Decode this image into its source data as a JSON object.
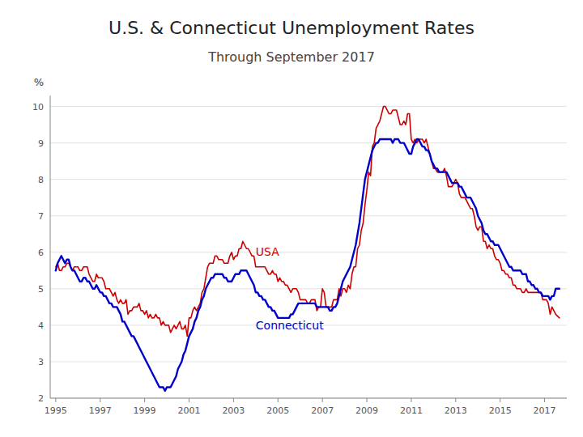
{
  "chart_data": {
    "type": "line",
    "title": "U.S. & Connecticut Unemployment Rates",
    "subtitle": "Through September 2017",
    "y_label": "%",
    "xlim": [
      1994.75,
      2018.0
    ],
    "ylim": [
      2,
      10.3
    ],
    "xticks": [
      1995,
      1997,
      1999,
      2001,
      2003,
      2005,
      2007,
      2009,
      2011,
      2013,
      2015,
      2017
    ],
    "yticks": [
      2,
      3,
      4,
      5,
      6,
      7,
      8,
      9,
      10
    ],
    "grid": true,
    "x": [
      1995.0,
      1995.083,
      1995.167,
      1995.25,
      1995.333,
      1995.417,
      1995.5,
      1995.583,
      1995.667,
      1995.75,
      1995.833,
      1995.917,
      1996.0,
      1996.083,
      1996.167,
      1996.25,
      1996.333,
      1996.417,
      1996.5,
      1996.583,
      1996.667,
      1996.75,
      1996.833,
      1996.917,
      1997.0,
      1997.083,
      1997.167,
      1997.25,
      1997.333,
      1997.417,
      1997.5,
      1997.583,
      1997.667,
      1997.75,
      1997.833,
      1997.917,
      1998.0,
      1998.083,
      1998.167,
      1998.25,
      1998.333,
      1998.417,
      1998.5,
      1998.583,
      1998.667,
      1998.75,
      1998.833,
      1998.917,
      1999.0,
      1999.083,
      1999.167,
      1999.25,
      1999.333,
      1999.417,
      1999.5,
      1999.583,
      1999.667,
      1999.75,
      1999.833,
      1999.917,
      2000.0,
      2000.083,
      2000.167,
      2000.25,
      2000.333,
      2000.417,
      2000.5,
      2000.583,
      2000.667,
      2000.75,
      2000.833,
      2000.917,
      2001.0,
      2001.083,
      2001.167,
      2001.25,
      2001.333,
      2001.417,
      2001.5,
      2001.583,
      2001.667,
      2001.75,
      2001.833,
      2001.917,
      2002.0,
      2002.083,
      2002.167,
      2002.25,
      2002.333,
      2002.417,
      2002.5,
      2002.583,
      2002.667,
      2002.75,
      2002.833,
      2002.917,
      2003.0,
      2003.083,
      2003.167,
      2003.25,
      2003.333,
      2003.417,
      2003.5,
      2003.583,
      2003.667,
      2003.75,
      2003.833,
      2003.917,
      2004.0,
      2004.083,
      2004.167,
      2004.25,
      2004.333,
      2004.417,
      2004.5,
      2004.583,
      2004.667,
      2004.75,
      2004.833,
      2004.917,
      2005.0,
      2005.083,
      2005.167,
      2005.25,
      2005.333,
      2005.417,
      2005.5,
      2005.583,
      2005.667,
      2005.75,
      2005.833,
      2005.917,
      2006.0,
      2006.083,
      2006.167,
      2006.25,
      2006.333,
      2006.417,
      2006.5,
      2006.583,
      2006.667,
      2006.75,
      2006.833,
      2006.917,
      2007.0,
      2007.083,
      2007.167,
      2007.25,
      2007.333,
      2007.417,
      2007.5,
      2007.583,
      2007.667,
      2007.75,
      2007.833,
      2007.917,
      2008.0,
      2008.083,
      2008.167,
      2008.25,
      2008.333,
      2008.417,
      2008.5,
      2008.583,
      2008.667,
      2008.75,
      2008.833,
      2008.917,
      2009.0,
      2009.083,
      2009.167,
      2009.25,
      2009.333,
      2009.417,
      2009.5,
      2009.583,
      2009.667,
      2009.75,
      2009.833,
      2009.917,
      2010.0,
      2010.083,
      2010.167,
      2010.25,
      2010.333,
      2010.417,
      2010.5,
      2010.583,
      2010.667,
      2010.75,
      2010.833,
      2010.917,
      2011.0,
      2011.083,
      2011.167,
      2011.25,
      2011.333,
      2011.417,
      2011.5,
      2011.583,
      2011.667,
      2011.75,
      2011.833,
      2011.917,
      2012.0,
      2012.083,
      2012.167,
      2012.25,
      2012.333,
      2012.417,
      2012.5,
      2012.583,
      2012.667,
      2012.75,
      2012.833,
      2012.917,
      2013.0,
      2013.083,
      2013.167,
      2013.25,
      2013.333,
      2013.417,
      2013.5,
      2013.583,
      2013.667,
      2013.75,
      2013.833,
      2013.917,
      2014.0,
      2014.083,
      2014.167,
      2014.25,
      2014.333,
      2014.417,
      2014.5,
      2014.583,
      2014.667,
      2014.75,
      2014.833,
      2014.917,
      2015.0,
      2015.083,
      2015.167,
      2015.25,
      2015.333,
      2015.417,
      2015.5,
      2015.583,
      2015.667,
      2015.75,
      2015.833,
      2015.917,
      2016.0,
      2016.083,
      2016.167,
      2016.25,
      2016.333,
      2016.417,
      2016.5,
      2016.583,
      2016.667,
      2016.75,
      2016.833,
      2016.917,
      2017.0,
      2017.083,
      2017.167,
      2017.25,
      2017.333,
      2017.417,
      2017.5,
      2017.667
    ],
    "series": [
      {
        "name": "USA",
        "color": "#cc0000",
        "values": [
          5.6,
          5.7,
          5.5,
          5.5,
          5.6,
          5.6,
          5.7,
          5.7,
          5.6,
          5.5,
          5.6,
          5.6,
          5.6,
          5.5,
          5.5,
          5.6,
          5.6,
          5.6,
          5.4,
          5.3,
          5.2,
          5.2,
          5.4,
          5.3,
          5.3,
          5.3,
          5.2,
          5.0,
          5.0,
          5.0,
          4.9,
          4.8,
          4.9,
          4.7,
          4.6,
          4.7,
          4.6,
          4.6,
          4.7,
          4.3,
          4.4,
          4.4,
          4.5,
          4.5,
          4.5,
          4.6,
          4.4,
          4.4,
          4.3,
          4.4,
          4.2,
          4.3,
          4.2,
          4.2,
          4.3,
          4.2,
          4.2,
          4.0,
          4.1,
          4.0,
          4.0,
          4.0,
          3.8,
          3.9,
          4.0,
          3.9,
          4.0,
          4.1,
          3.9,
          3.9,
          4.0,
          3.7,
          4.2,
          4.2,
          4.4,
          4.5,
          4.4,
          4.5,
          4.6,
          4.9,
          5.0,
          5.3,
          5.6,
          5.7,
          5.7,
          5.7,
          5.9,
          5.9,
          5.8,
          5.8,
          5.8,
          5.7,
          5.7,
          5.7,
          5.9,
          6.0,
          5.8,
          5.9,
          5.9,
          6.1,
          6.1,
          6.3,
          6.2,
          6.1,
          6.1,
          6.0,
          5.9,
          5.9,
          5.6,
          5.6,
          5.6,
          5.6,
          5.6,
          5.6,
          5.5,
          5.4,
          5.4,
          5.5,
          5.4,
          5.4,
          5.2,
          5.3,
          5.2,
          5.2,
          5.1,
          5.1,
          5.0,
          4.9,
          5.0,
          5.0,
          5.0,
          4.9,
          4.7,
          4.7,
          4.7,
          4.7,
          4.6,
          4.6,
          4.7,
          4.7,
          4.7,
          4.4,
          4.5,
          4.5,
          5.0,
          4.9,
          4.5,
          4.5,
          4.5,
          4.5,
          4.7,
          4.7,
          4.7,
          5.0,
          4.8,
          5.0,
          5.0,
          4.9,
          5.1,
          5.0,
          5.4,
          5.6,
          5.6,
          6.1,
          6.2,
          6.6,
          6.8,
          7.3,
          7.7,
          8.2,
          8.1,
          8.9,
          9.0,
          9.4,
          9.5,
          9.6,
          9.8,
          10.0,
          10.0,
          9.9,
          9.8,
          9.8,
          9.9,
          9.9,
          9.9,
          9.7,
          9.5,
          9.5,
          9.6,
          9.5,
          9.8,
          9.8,
          9.1,
          9.0,
          9.1,
          9.0,
          9.1,
          9.1,
          9.1,
          9.0,
          9.1,
          8.9,
          8.7,
          8.5,
          8.3,
          8.3,
          8.2,
          8.2,
          8.2,
          8.2,
          8.3,
          8.1,
          7.8,
          7.8,
          7.8,
          7.9,
          8.0,
          7.9,
          7.6,
          7.5,
          7.5,
          7.5,
          7.4,
          7.3,
          7.2,
          7.2,
          7.0,
          6.7,
          6.6,
          6.7,
          6.7,
          6.3,
          6.3,
          6.1,
          6.2,
          6.1,
          6.1,
          5.9,
          5.8,
          5.8,
          5.7,
          5.5,
          5.5,
          5.4,
          5.4,
          5.3,
          5.3,
          5.1,
          5.1,
          5.0,
          5.0,
          5.0,
          4.9,
          4.9,
          5.0,
          4.9,
          4.9,
          4.9,
          4.9,
          4.9,
          4.9,
          4.9,
          4.9,
          4.7,
          4.7,
          4.7,
          4.6,
          4.3,
          4.5,
          4.4,
          4.3,
          4.2
        ]
      },
      {
        "name": "Connecticut",
        "color": "#0000cc",
        "values": [
          5.5,
          5.7,
          5.8,
          5.9,
          5.8,
          5.7,
          5.8,
          5.8,
          5.6,
          5.5,
          5.5,
          5.4,
          5.3,
          5.2,
          5.2,
          5.3,
          5.3,
          5.2,
          5.2,
          5.1,
          5.0,
          5.0,
          5.1,
          5.0,
          4.9,
          4.9,
          4.8,
          4.8,
          4.7,
          4.6,
          4.6,
          4.5,
          4.5,
          4.5,
          4.4,
          4.3,
          4.1,
          4.1,
          4.0,
          3.9,
          3.8,
          3.7,
          3.7,
          3.6,
          3.5,
          3.4,
          3.3,
          3.2,
          3.1,
          3.0,
          2.9,
          2.8,
          2.7,
          2.6,
          2.5,
          2.4,
          2.3,
          2.3,
          2.3,
          2.2,
          2.3,
          2.3,
          2.3,
          2.4,
          2.5,
          2.6,
          2.8,
          2.9,
          3.0,
          3.2,
          3.3,
          3.5,
          3.7,
          3.8,
          3.9,
          4.1,
          4.2,
          4.4,
          4.5,
          4.7,
          4.8,
          5.0,
          5.1,
          5.2,
          5.3,
          5.3,
          5.4,
          5.4,
          5.4,
          5.4,
          5.4,
          5.3,
          5.3,
          5.2,
          5.2,
          5.2,
          5.3,
          5.4,
          5.4,
          5.4,
          5.5,
          5.5,
          5.5,
          5.5,
          5.4,
          5.3,
          5.2,
          5.1,
          4.9,
          4.9,
          4.8,
          4.8,
          4.7,
          4.7,
          4.6,
          4.5,
          4.5,
          4.4,
          4.4,
          4.3,
          4.2,
          4.2,
          4.2,
          4.2,
          4.2,
          4.2,
          4.2,
          4.3,
          4.3,
          4.4,
          4.5,
          4.6,
          4.6,
          4.6,
          4.6,
          4.6,
          4.6,
          4.6,
          4.6,
          4.6,
          4.6,
          4.5,
          4.5,
          4.5,
          4.5,
          4.5,
          4.5,
          4.5,
          4.4,
          4.4,
          4.5,
          4.5,
          4.6,
          4.8,
          5.0,
          5.2,
          5.3,
          5.4,
          5.5,
          5.6,
          5.8,
          6.0,
          6.2,
          6.5,
          6.8,
          7.2,
          7.6,
          8.0,
          8.2,
          8.4,
          8.6,
          8.8,
          8.9,
          9.0,
          9.0,
          9.1,
          9.1,
          9.1,
          9.1,
          9.1,
          9.1,
          9.1,
          9.0,
          9.1,
          9.1,
          9.1,
          9.0,
          9.0,
          9.0,
          8.9,
          8.8,
          8.7,
          8.7,
          8.9,
          9.0,
          9.1,
          9.1,
          9.0,
          8.9,
          8.9,
          8.8,
          8.8,
          8.7,
          8.5,
          8.4,
          8.3,
          8.3,
          8.2,
          8.2,
          8.2,
          8.2,
          8.2,
          8.1,
          8.0,
          7.9,
          7.9,
          7.9,
          7.9,
          7.8,
          7.8,
          7.7,
          7.6,
          7.5,
          7.5,
          7.5,
          7.4,
          7.3,
          7.2,
          7.0,
          6.9,
          6.8,
          6.6,
          6.5,
          6.5,
          6.4,
          6.3,
          6.3,
          6.2,
          6.2,
          6.2,
          6.1,
          6.0,
          5.9,
          5.8,
          5.7,
          5.6,
          5.6,
          5.5,
          5.5,
          5.5,
          5.5,
          5.5,
          5.4,
          5.4,
          5.4,
          5.2,
          5.2,
          5.1,
          5.1,
          5.0,
          5.0,
          4.9,
          4.9,
          4.8,
          4.8,
          4.8,
          4.8,
          4.7,
          4.8,
          4.8,
          5.0,
          5.0
        ]
      }
    ]
  }
}
